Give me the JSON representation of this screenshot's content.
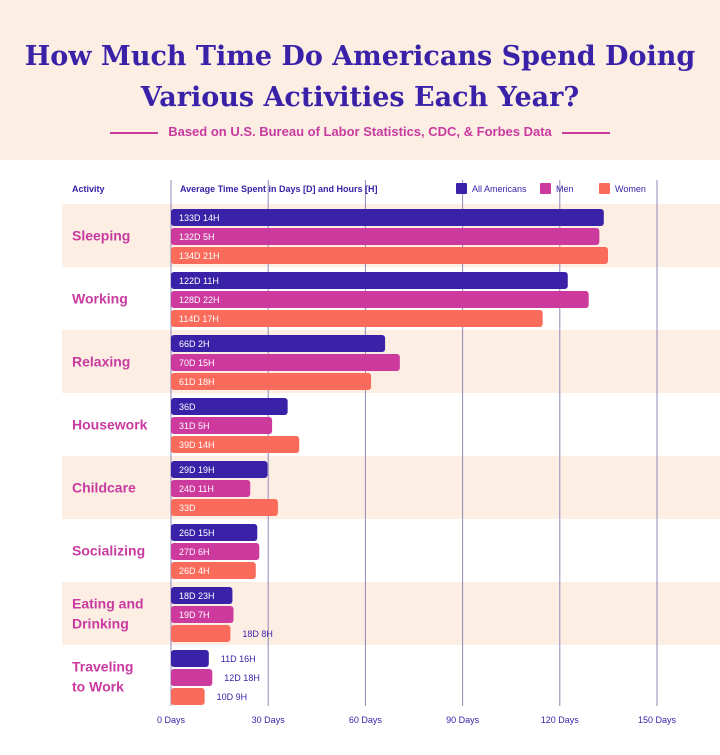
{
  "title": "How Much Time Do Americans Spend Doing Various Activities Each Year?",
  "subtitle": "Based on U.S. Bureau of Labor Statistics, CDC, & Forbes Data",
  "chart_data": {
    "type": "bar",
    "orientation": "horizontal",
    "col_activity": "Activity",
    "col_value": "Average Time Spent in Days [D] and Hours [H]",
    "categories": [
      "Sleeping",
      "Working",
      "Relaxing",
      "Housework",
      "Childcare",
      "Socializing",
      "Eating and Drinking",
      "Traveling to Work"
    ],
    "series": [
      {
        "name": "All Americans",
        "color": "#3a22a8",
        "values": [
          133.58,
          122.46,
          66.08,
          36,
          29.79,
          26.63,
          18.96,
          11.67
        ],
        "labels": [
          "133D 14H",
          "122D 11H",
          "66D 2H",
          "36D",
          "29D 19H",
          "26D 15H",
          "18D 23H",
          "11D 16H"
        ]
      },
      {
        "name": "Men",
        "color": "#cc3a9e",
        "values": [
          132.21,
          128.92,
          70.63,
          31.21,
          24.46,
          27.25,
          19.29,
          12.75
        ],
        "labels": [
          "132D 5H",
          "128D 22H",
          "70D 15H",
          "31D 5H",
          "24D 11H",
          "27D 6H",
          "19D 7H",
          "12D 18H"
        ]
      },
      {
        "name": "Women",
        "color": "#fb6b5b",
        "values": [
          134.88,
          114.71,
          61.75,
          39.58,
          33,
          26.17,
          18.33,
          10.38
        ],
        "labels": [
          "134D 21H",
          "114D 17H",
          "61D 18H",
          "39D 14H",
          "33D",
          "26D 4H",
          "18D 8H",
          "10D 9H"
        ]
      }
    ],
    "xticks": [
      0,
      30,
      60,
      90,
      120,
      150
    ],
    "xtick_labels": [
      "0 Days",
      "30 Days",
      "60 Days",
      "90 Days",
      "120 Days",
      "150 Days"
    ],
    "xlim": [
      0,
      150
    ],
    "legend": "top-right",
    "grid": true
  }
}
